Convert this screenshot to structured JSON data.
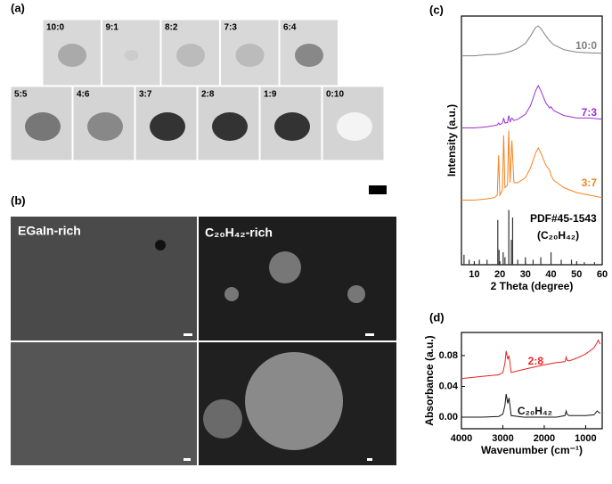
{
  "panel_labels": [
    "(a)",
    "(b)",
    "(c)",
    "(d)"
  ],
  "photos": {
    "row1": [
      "10:0",
      "9:1",
      "8:2",
      "7:3",
      "6:4"
    ],
    "row2": [
      "5:5",
      "4:6",
      "3:7",
      "2:8",
      "1:9",
      "0:10"
    ]
  },
  "sem": {
    "labels": [
      "EGaIn-rich",
      "C₂₀H₄₂-rich"
    ]
  },
  "chart_data": [
    {
      "type": "line",
      "xlabel": "2 Theta (degree)",
      "ylabel": "Intensity (a.u.)",
      "xlim": [
        5,
        60
      ],
      "xticks": [
        10,
        20,
        30,
        40,
        50,
        60
      ],
      "ylim": [
        0,
        100
      ],
      "x": [
        5,
        10,
        15,
        18,
        19,
        19.5,
        20,
        21,
        21.5,
        22,
        23,
        23.5,
        24,
        24.7,
        25.5,
        27,
        30,
        32,
        34,
        35,
        36,
        38,
        39.5,
        40,
        41,
        45,
        50,
        55,
        60
      ],
      "series": [
        {
          "name": "10:0",
          "color": "#808080",
          "values": [
            84,
            84,
            84.5,
            84.5,
            84.7,
            84.7,
            84.8,
            85,
            85,
            85.2,
            85.5,
            85.6,
            85.8,
            86,
            86.3,
            87,
            89,
            92,
            95.5,
            96,
            95,
            92,
            90,
            89.5,
            88.5,
            86.5,
            85.5,
            85.2,
            85
          ]
        },
        {
          "name": "7:3",
          "color": "#9a2fd6",
          "values": [
            55,
            55,
            55.5,
            56,
            56.2,
            57,
            56.3,
            57,
            59,
            57,
            57.2,
            60,
            57.5,
            59,
            58,
            58.5,
            60.5,
            64,
            70,
            72,
            70,
            65,
            63,
            63.5,
            62,
            60,
            59,
            59,
            58.5
          ]
        },
        {
          "name": "3:7",
          "color": "#f5821f",
          "values": [
            26,
            26,
            26.5,
            27,
            28,
            44,
            28,
            30,
            52,
            31,
            32,
            54,
            33,
            50,
            33,
            33,
            35,
            39,
            45,
            47,
            45,
            40,
            38,
            36,
            34,
            31,
            29,
            28,
            27
          ]
        }
      ],
      "reference": {
        "label": "PDF#45-1543",
        "formula": "(C₂₀H₄₂)",
        "color": "#333333",
        "x": [
          6,
          8,
          12,
          15,
          19.2,
          19.7,
          21.3,
          22,
          23.5,
          24.5,
          25,
          27,
          30,
          33,
          36,
          40,
          44,
          48,
          53,
          57
        ],
        "values": [
          4,
          2,
          2,
          2,
          18,
          6,
          5,
          3,
          22,
          10,
          19,
          2,
          3,
          2,
          3,
          5,
          2,
          2,
          1,
          1
        ]
      }
    },
    {
      "type": "line",
      "xlabel": "Wavenumber (cm⁻¹)",
      "ylabel": "Absorbance (a.u.)",
      "xlim": [
        4000,
        600
      ],
      "xticks": [
        4000,
        3000,
        2000,
        1000
      ],
      "ylim": [
        -0.015,
        0.11
      ],
      "yticks": [
        {
          "value": 0,
          "label": "0.00"
        },
        {
          "value": 0.04,
          "label": "0.04"
        },
        {
          "value": 0.08,
          "label": "0.08"
        }
      ],
      "x": [
        4000,
        3500,
        3100,
        3000,
        2950,
        2920,
        2880,
        2850,
        2800,
        2500,
        2000,
        1700,
        1500,
        1470,
        1450,
        1400,
        1200,
        1000,
        800,
        720,
        700,
        650
      ],
      "series": [
        {
          "name": "2:8",
          "color": "#ee2222",
          "values": [
            0.05,
            0.053,
            0.055,
            0.058,
            0.07,
            0.086,
            0.075,
            0.08,
            0.058,
            0.062,
            0.068,
            0.071,
            0.072,
            0.078,
            0.074,
            0.073,
            0.077,
            0.082,
            0.09,
            0.097,
            0.1,
            0.095
          ]
        },
        {
          "name": "C₂₀H₄₂",
          "color": "#111111",
          "values": [
            0,
            0,
            0.001,
            0.004,
            0.015,
            0.03,
            0.018,
            0.025,
            0.002,
            0,
            0,
            0,
            0.002,
            0.008,
            0.004,
            0.002,
            0.002,
            0.002,
            0.003,
            0.008,
            0.007,
            0.005
          ]
        }
      ]
    }
  ]
}
